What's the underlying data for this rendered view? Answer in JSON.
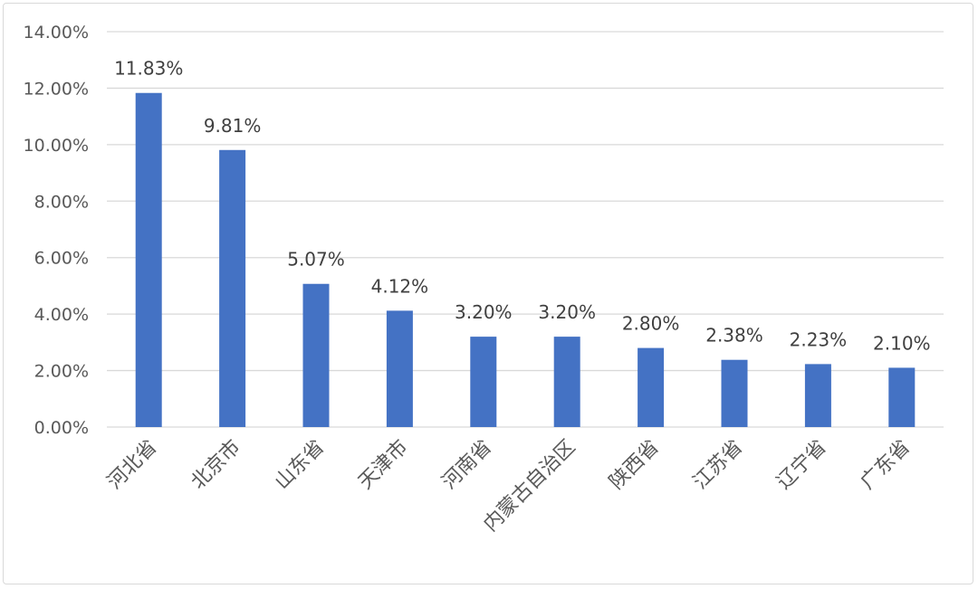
{
  "chart_data": {
    "type": "bar",
    "categories": [
      "河北省",
      "北京市",
      "山东省",
      "天津市",
      "河南省",
      "内蒙古自治区",
      "陕西省",
      "江苏省",
      "辽宁省",
      "广东省"
    ],
    "values": [
      11.83,
      9.81,
      5.07,
      4.12,
      3.2,
      3.2,
      2.8,
      2.38,
      2.23,
      2.1
    ],
    "data_labels": [
      "11.83%",
      "9.81%",
      "5.07%",
      "4.12%",
      "3.20%",
      "3.20%",
      "2.80%",
      "2.38%",
      "2.23%",
      "2.10%"
    ],
    "y_ticks": [
      0,
      2,
      4,
      6,
      8,
      10,
      12,
      14
    ],
    "y_tick_labels": [
      "0.00%",
      "2.00%",
      "4.00%",
      "6.00%",
      "8.00%",
      "10.00%",
      "12.00%",
      "14.00%"
    ],
    "ylim": [
      0,
      14
    ],
    "grid": true,
    "bar_color": "#4472c4",
    "gridline_color": "#d9d9d9",
    "title": "",
    "xlabel": "",
    "ylabel": ""
  }
}
